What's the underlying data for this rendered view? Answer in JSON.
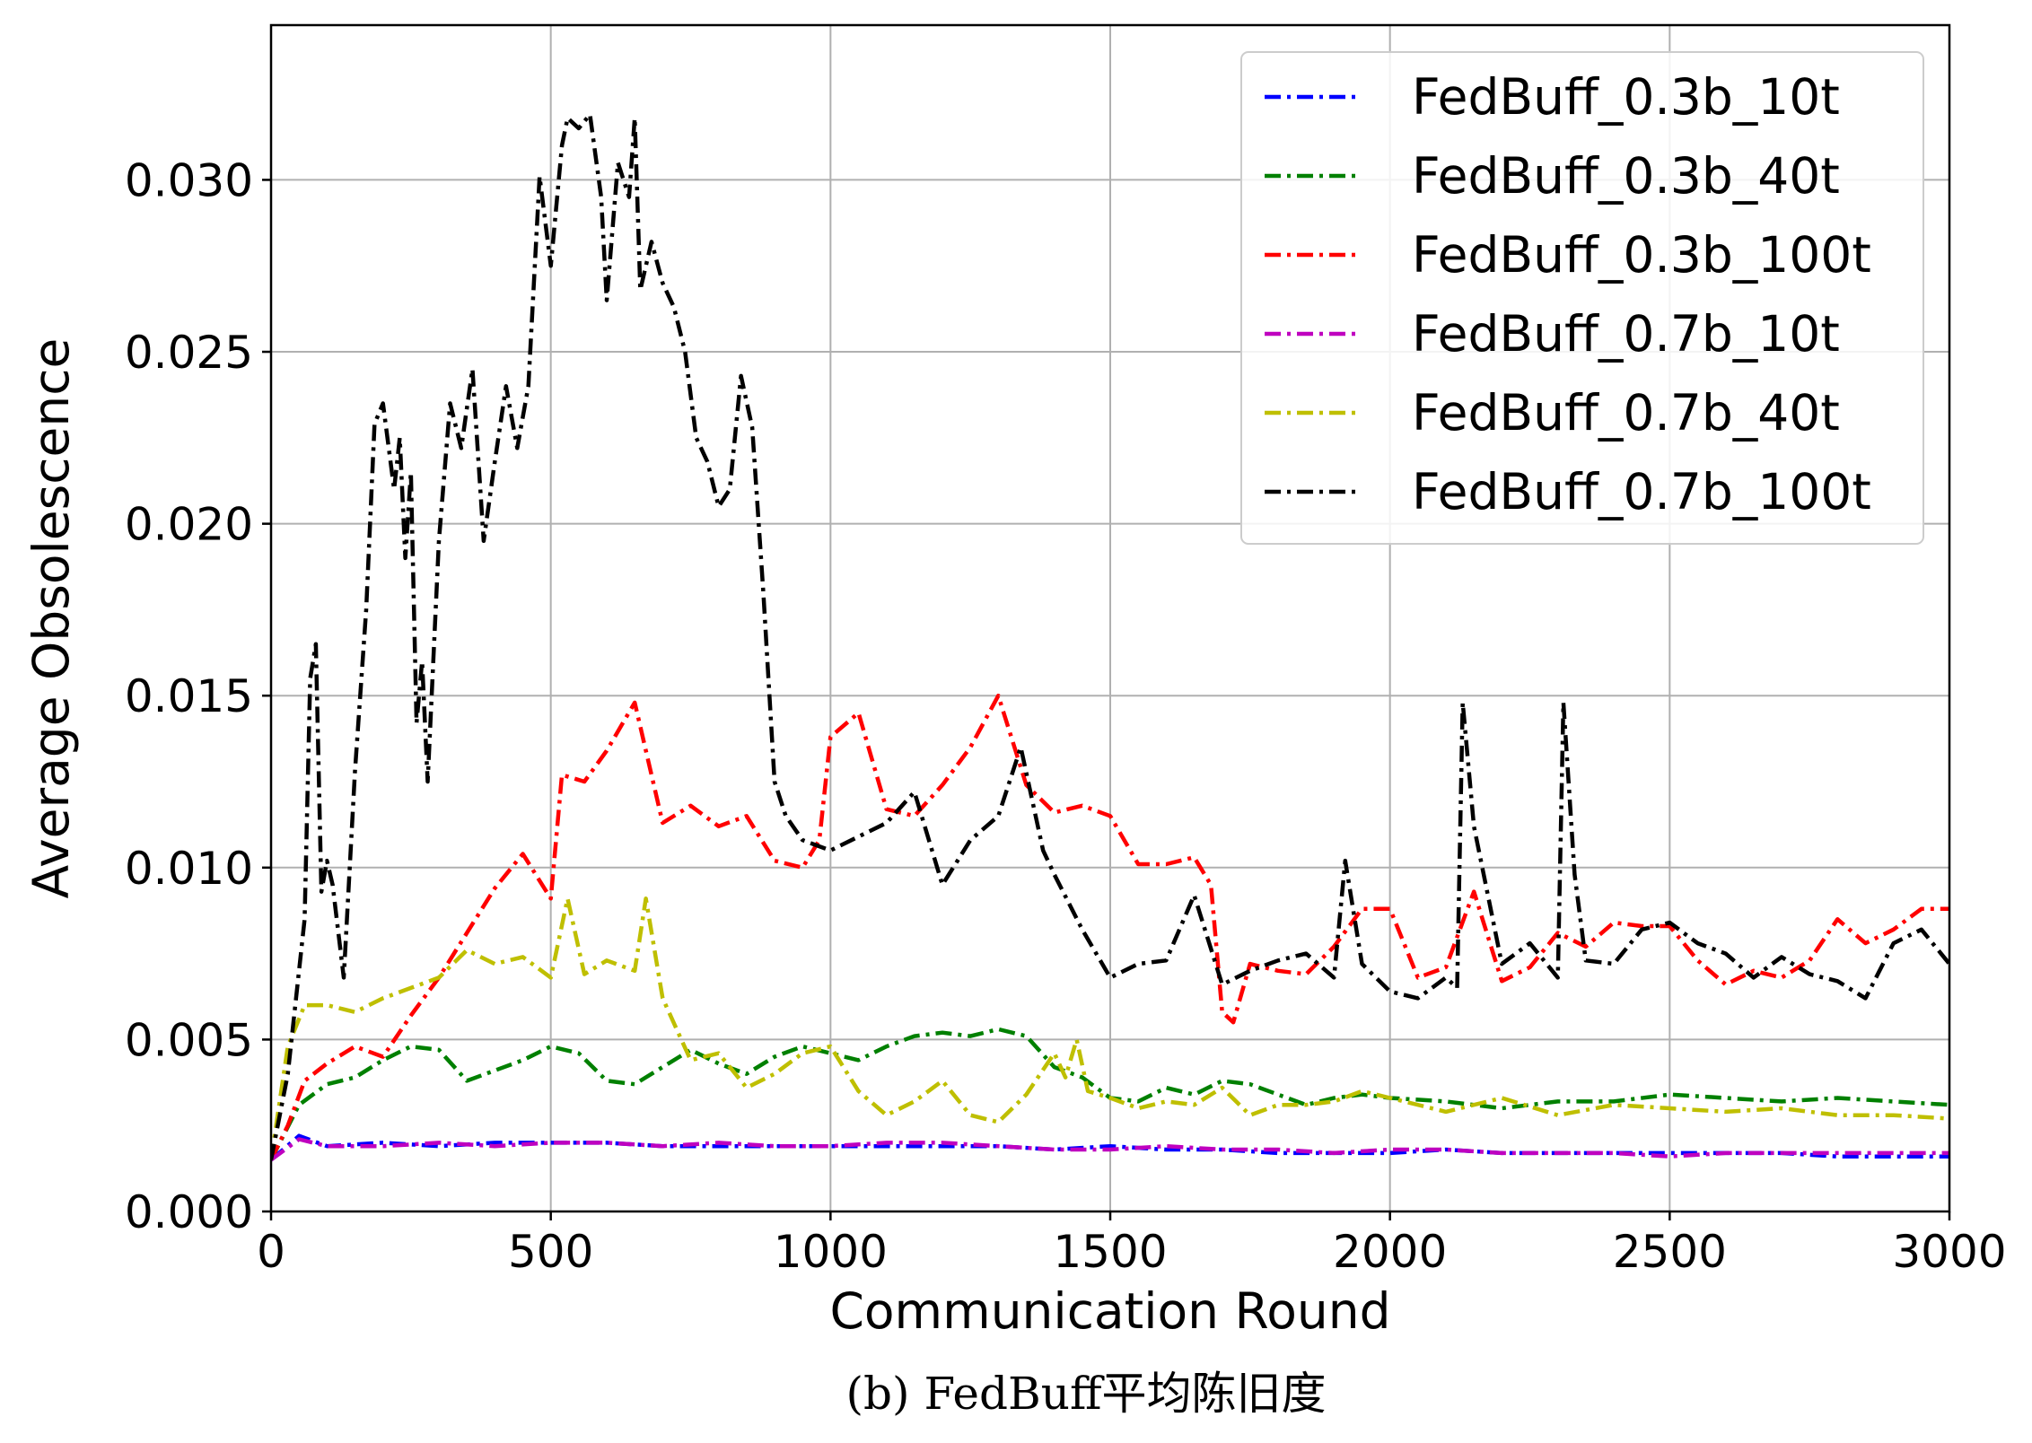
{
  "caption": "(b) FedBuff平均陈旧度",
  "chart_data": {
    "type": "line",
    "title": "",
    "xlabel": "Communication Round",
    "ylabel": "Average Obsolescence",
    "xlim": [
      0,
      3000
    ],
    "ylim": [
      0,
      0.0345
    ],
    "xticks": [
      0,
      500,
      1000,
      1500,
      2000,
      2500,
      3000
    ],
    "xtick_labels": [
      "0",
      "500",
      "1000",
      "1500",
      "2000",
      "2500",
      "3000"
    ],
    "yticks": [
      0,
      0.005,
      0.01,
      0.015,
      0.02,
      0.025,
      0.03
    ],
    "ytick_labels": [
      "0.000",
      "0.005",
      "0.010",
      "0.015",
      "0.020",
      "0.025",
      "0.030"
    ],
    "grid": true,
    "legend_position": "top-right",
    "line_style": "dash-dot",
    "series": [
      {
        "name": "FedBuff_0.3b_10t",
        "color": "#0000ff",
        "x": [
          0,
          50,
          100,
          200,
          300,
          400,
          500,
          600,
          700,
          800,
          900,
          1000,
          1100,
          1200,
          1300,
          1400,
          1500,
          1600,
          1700,
          1800,
          1900,
          2000,
          2100,
          2200,
          2300,
          2400,
          2500,
          2600,
          2700,
          2800,
          2900,
          3000
        ],
        "values": [
          0.0015,
          0.0022,
          0.0019,
          0.002,
          0.0019,
          0.002,
          0.002,
          0.002,
          0.0019,
          0.0019,
          0.0019,
          0.0019,
          0.0019,
          0.0019,
          0.0019,
          0.0018,
          0.0019,
          0.0018,
          0.0018,
          0.0017,
          0.0017,
          0.0017,
          0.0018,
          0.0017,
          0.0017,
          0.0017,
          0.0017,
          0.0017,
          0.0017,
          0.0016,
          0.0016,
          0.0016
        ]
      },
      {
        "name": "FedBuff_0.3b_40t",
        "color": "#008000",
        "x": [
          0,
          50,
          100,
          150,
          200,
          250,
          300,
          350,
          400,
          450,
          500,
          550,
          600,
          650,
          700,
          750,
          800,
          850,
          900,
          950,
          1000,
          1050,
          1100,
          1150,
          1200,
          1250,
          1300,
          1350,
          1400,
          1450,
          1500,
          1550,
          1600,
          1650,
          1700,
          1750,
          1800,
          1850,
          1900,
          1950,
          2000,
          2100,
          2200,
          2300,
          2400,
          2500,
          2600,
          2700,
          2800,
          2900,
          3000
        ],
        "values": [
          0.0015,
          0.0031,
          0.0037,
          0.0039,
          0.0044,
          0.0048,
          0.0047,
          0.0038,
          0.0041,
          0.0044,
          0.0048,
          0.0046,
          0.0038,
          0.0037,
          0.0042,
          0.0047,
          0.0043,
          0.004,
          0.0045,
          0.0048,
          0.0046,
          0.0044,
          0.0048,
          0.0051,
          0.0052,
          0.0051,
          0.0053,
          0.0051,
          0.0042,
          0.0039,
          0.0033,
          0.0032,
          0.0036,
          0.0034,
          0.0038,
          0.0037,
          0.0034,
          0.0031,
          0.0033,
          0.0034,
          0.0033,
          0.0032,
          0.003,
          0.0032,
          0.0032,
          0.0034,
          0.0033,
          0.0032,
          0.0033,
          0.0032,
          0.0031
        ]
      },
      {
        "name": "FedBuff_0.3b_100t",
        "color": "#ff0000",
        "x": [
          0,
          30,
          60,
          100,
          150,
          200,
          250,
          300,
          350,
          400,
          450,
          500,
          520,
          560,
          600,
          650,
          700,
          750,
          800,
          850,
          900,
          950,
          980,
          1000,
          1050,
          1100,
          1150,
          1200,
          1250,
          1300,
          1350,
          1400,
          1450,
          1500,
          1550,
          1600,
          1650,
          1680,
          1700,
          1720,
          1750,
          1800,
          1850,
          1900,
          1950,
          2000,
          2050,
          2100,
          2150,
          2200,
          2250,
          2300,
          2350,
          2400,
          2450,
          2500,
          2550,
          2600,
          2650,
          2700,
          2750,
          2800,
          2850,
          2900,
          2950,
          3000
        ],
        "values": [
          0.0015,
          0.0025,
          0.0038,
          0.0043,
          0.0048,
          0.0045,
          0.0057,
          0.0068,
          0.0081,
          0.0094,
          0.0104,
          0.0091,
          0.0127,
          0.0125,
          0.0134,
          0.0148,
          0.0113,
          0.0118,
          0.0112,
          0.0115,
          0.0102,
          0.01,
          0.0108,
          0.0138,
          0.0145,
          0.0117,
          0.0115,
          0.0124,
          0.0135,
          0.015,
          0.0124,
          0.0116,
          0.0118,
          0.0115,
          0.0101,
          0.0101,
          0.0103,
          0.0095,
          0.0058,
          0.0055,
          0.0072,
          0.007,
          0.0069,
          0.0077,
          0.0088,
          0.0088,
          0.0068,
          0.0071,
          0.0093,
          0.0067,
          0.0071,
          0.0081,
          0.0077,
          0.0084,
          0.0083,
          0.0083,
          0.0073,
          0.0066,
          0.007,
          0.0068,
          0.0073,
          0.0085,
          0.0078,
          0.0082,
          0.0088,
          0.0088
        ]
      },
      {
        "name": "FedBuff_0.7b_10t",
        "color": "#bf00bf",
        "x": [
          0,
          50,
          100,
          200,
          300,
          400,
          500,
          600,
          700,
          800,
          900,
          1000,
          1100,
          1200,
          1300,
          1400,
          1500,
          1600,
          1700,
          1800,
          1900,
          2000,
          2100,
          2200,
          2300,
          2400,
          2500,
          2600,
          2700,
          2800,
          2900,
          3000
        ],
        "values": [
          0.0015,
          0.0021,
          0.0019,
          0.0019,
          0.002,
          0.0019,
          0.002,
          0.002,
          0.0019,
          0.002,
          0.0019,
          0.0019,
          0.002,
          0.002,
          0.0019,
          0.0018,
          0.0018,
          0.0019,
          0.0018,
          0.0018,
          0.0017,
          0.0018,
          0.0018,
          0.0017,
          0.0017,
          0.0017,
          0.0016,
          0.0017,
          0.0017,
          0.0017,
          0.0017,
          0.0017
        ]
      },
      {
        "name": "FedBuff_0.7b_40t",
        "color": "#bfbf00",
        "x": [
          0,
          30,
          60,
          100,
          150,
          200,
          250,
          300,
          350,
          400,
          450,
          500,
          530,
          560,
          600,
          650,
          670,
          700,
          750,
          800,
          850,
          900,
          950,
          1000,
          1050,
          1100,
          1150,
          1200,
          1250,
          1300,
          1350,
          1400,
          1420,
          1440,
          1460,
          1500,
          1550,
          1600,
          1650,
          1700,
          1750,
          1800,
          1850,
          1900,
          1950,
          2000,
          2100,
          2200,
          2300,
          2400,
          2500,
          2600,
          2700,
          2800,
          2900,
          3000
        ],
        "values": [
          0.0015,
          0.0048,
          0.006,
          0.006,
          0.0058,
          0.0062,
          0.0065,
          0.0068,
          0.0076,
          0.0072,
          0.0074,
          0.0068,
          0.0091,
          0.0069,
          0.0073,
          0.007,
          0.0091,
          0.0062,
          0.0044,
          0.0046,
          0.0036,
          0.004,
          0.0046,
          0.0048,
          0.0035,
          0.0028,
          0.0032,
          0.0038,
          0.0028,
          0.0026,
          0.0034,
          0.0046,
          0.0039,
          0.005,
          0.0035,
          0.0033,
          0.003,
          0.0032,
          0.0031,
          0.0036,
          0.0028,
          0.0031,
          0.0031,
          0.0032,
          0.0035,
          0.0033,
          0.0029,
          0.0033,
          0.0028,
          0.0031,
          0.003,
          0.0029,
          0.003,
          0.0028,
          0.0028,
          0.0027
        ]
      },
      {
        "name": "FedBuff_0.7b_100t",
        "color": "#000000",
        "x": [
          0,
          30,
          60,
          70,
          80,
          90,
          100,
          110,
          130,
          150,
          170,
          185,
          200,
          220,
          230,
          240,
          250,
          260,
          270,
          280,
          300,
          320,
          340,
          360,
          380,
          400,
          420,
          440,
          460,
          480,
          500,
          520,
          530,
          550,
          570,
          590,
          600,
          620,
          640,
          650,
          660,
          680,
          700,
          720,
          740,
          760,
          780,
          800,
          820,
          840,
          860,
          880,
          900,
          920,
          950,
          1000,
          1050,
          1100,
          1150,
          1200,
          1250,
          1300,
          1340,
          1380,
          1400,
          1450,
          1500,
          1550,
          1600,
          1650,
          1700,
          1750,
          1800,
          1850,
          1900,
          1920,
          1950,
          2000,
          2050,
          2100,
          2120,
          2130,
          2150,
          2200,
          2250,
          2300,
          2310,
          2330,
          2350,
          2400,
          2450,
          2500,
          2550,
          2600,
          2650,
          2700,
          2750,
          2800,
          2850,
          2900,
          2950,
          3000
        ],
        "values": [
          0.0015,
          0.004,
          0.0085,
          0.0155,
          0.0165,
          0.0093,
          0.0102,
          0.0095,
          0.0068,
          0.0128,
          0.0175,
          0.0229,
          0.0235,
          0.021,
          0.0225,
          0.019,
          0.0215,
          0.0142,
          0.016,
          0.0125,
          0.0195,
          0.0235,
          0.0222,
          0.0245,
          0.0195,
          0.0218,
          0.024,
          0.0222,
          0.024,
          0.0301,
          0.0275,
          0.031,
          0.0318,
          0.0315,
          0.0319,
          0.0295,
          0.0265,
          0.0305,
          0.0295,
          0.0318,
          0.0268,
          0.0282,
          0.027,
          0.0263,
          0.025,
          0.0225,
          0.0218,
          0.0205,
          0.021,
          0.0243,
          0.0228,
          0.018,
          0.0125,
          0.0115,
          0.0108,
          0.0105,
          0.0109,
          0.0113,
          0.0122,
          0.0095,
          0.0108,
          0.0115,
          0.0135,
          0.0105,
          0.0098,
          0.0082,
          0.0068,
          0.0072,
          0.0073,
          0.0092,
          0.0066,
          0.007,
          0.0073,
          0.0075,
          0.0068,
          0.0102,
          0.0072,
          0.0064,
          0.0062,
          0.0068,
          0.0065,
          0.0148,
          0.0112,
          0.0072,
          0.0078,
          0.0068,
          0.0148,
          0.0098,
          0.0073,
          0.0072,
          0.0082,
          0.0084,
          0.0078,
          0.0075,
          0.0068,
          0.0074,
          0.0069,
          0.0067,
          0.0062,
          0.0078,
          0.0082,
          0.0072
        ]
      }
    ]
  }
}
